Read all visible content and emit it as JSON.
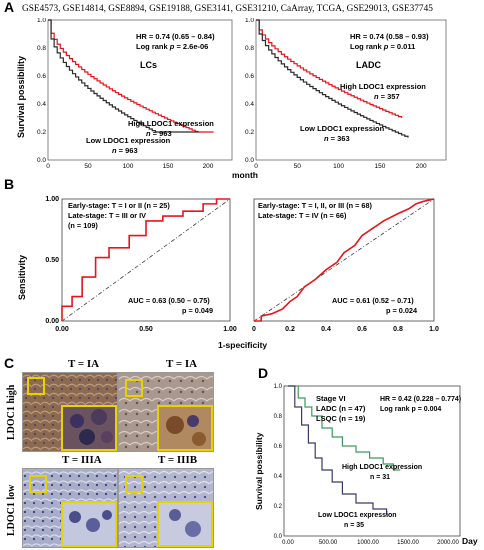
{
  "header": {
    "letter": "A",
    "datasets": "GSE4573, GSE14814, GSE8894, GSE19188, GSE3141, GSE31210, CaArray, TCGA, GSE29013, GSE37745"
  },
  "panelA": {
    "ylabel": "Survival possibility",
    "xlabel": "month",
    "left": {
      "name": "LCs",
      "hr": "HR = 0.74 (0.65 – 0.84)",
      "logrank_prefix": "Log rank ",
      "logrank_p": "p",
      "logrank_val": " = 2.6e-06",
      "high": "High LDOC1 expression",
      "high_n": "n",
      "high_n_val": " = 963",
      "low": "Low LDOC1 expression",
      "low_n": "n",
      "low_n_val": " = 963"
    },
    "right": {
      "name": "LADC",
      "hr": "HR = 0.74 (0.58 – 0.93)",
      "logrank_prefix": "Log rank ",
      "logrank_p": "p",
      "logrank_val": " = 0.011",
      "high": "High LDOC1 expression",
      "high_n": "n",
      "high_n_val": " = 357",
      "low": "Low LDOC1 expression",
      "low_n": "n",
      "low_n_val": " = 363"
    },
    "yticks": [
      "0.0",
      "0.2",
      "0.4",
      "0.6",
      "0.8",
      "1.0"
    ],
    "xticks": [
      "0",
      "50",
      "100",
      "150",
      "200"
    ]
  },
  "panelB": {
    "letter": "B",
    "ylabel": "Sensitivity",
    "xlabel": "1-specificity",
    "yticks": [
      "0.00",
      "0.50",
      "1.00"
    ],
    "xticks_left": [
      "0.00",
      "0.50",
      "1.00"
    ],
    "xticks_right": [
      "0",
      "0.2",
      "0.4",
      "0.6",
      "0.8",
      "1.0"
    ],
    "left": {
      "early": "Early-stage: T = I or II (n = 25)",
      "late1": "Late-stage: T = III or IV",
      "late2": "(n = 109)",
      "auc": "AUC = 0.63 (0.50 – 0.75)",
      "p": "p = 0.049"
    },
    "right": {
      "early": "Early-stage: T = I, II, or III (n = 68)",
      "late": "Late-stage: T = IV (n = 66)",
      "auc": "AUC = 0.61 (0.52 – 0.71)",
      "p": "p = 0.024"
    }
  },
  "panelC": {
    "letter": "C",
    "row_high": "LDOC1 high",
    "row_low": "LDOC1 low",
    "t1": "T = IA",
    "t2": "T = IA",
    "t3": "T = IIIA",
    "t4": "T = IIIB"
  },
  "panelD": {
    "letter": "D",
    "ylabel": "Survival possibility",
    "xlabel": "Day",
    "stage": "Stage VI",
    "ladc": "LADC (n = 47)",
    "lsqc": "LSQC (n = 19)",
    "hr": "HR = 0.42 (0.228 – 0.774)",
    "logrank": "Log rank p = 0.004",
    "high": "High LDOC1 expression",
    "high_n": "n = 31",
    "low": "Low LDOC1 expression",
    "low_n": "n = 35",
    "yticks": [
      "0.0",
      "0.2",
      "0.4",
      "0.6",
      "0.8",
      "1.0"
    ],
    "xticks": [
      "0.00",
      "500.00",
      "1000.00",
      "1500.00",
      "2000.00"
    ]
  },
  "colors": {
    "high": "#e8141b",
    "low": "#2b2b2b",
    "roc": "#e8141b",
    "panelD_high": "#3a9a5c",
    "panelD_low": "#3a3a6a",
    "inset_border": "#e8d200"
  }
}
